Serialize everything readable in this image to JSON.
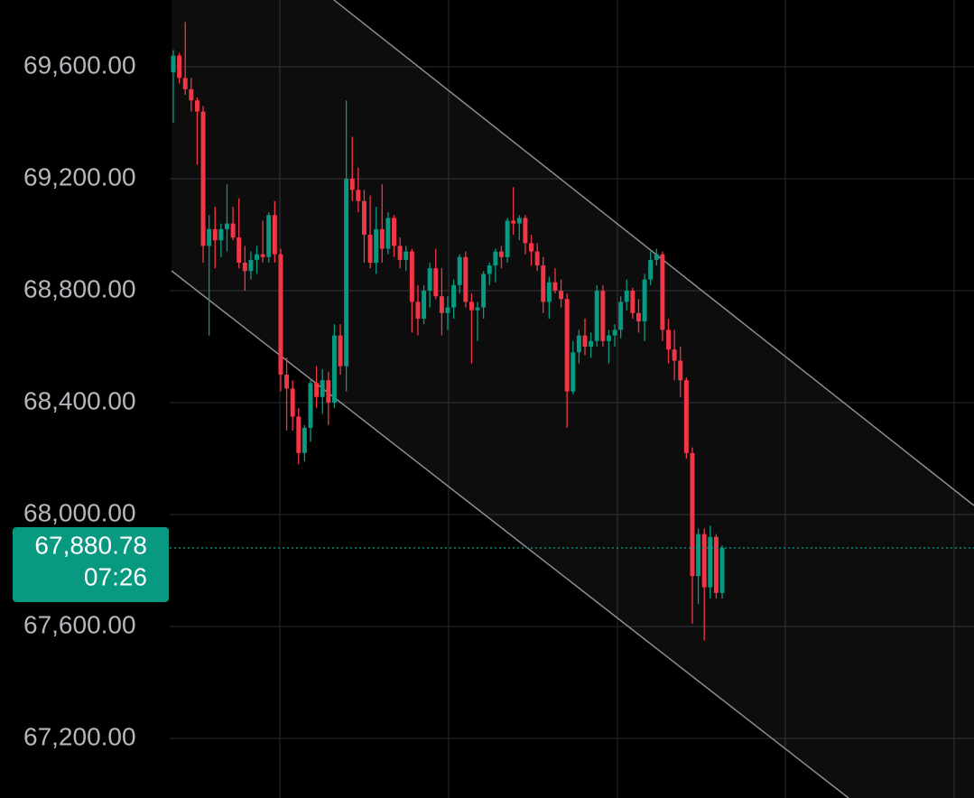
{
  "chart_data": {
    "type": "candlestick",
    "ylim": [
      66987.1,
      69838.7
    ],
    "yticks": [
      {
        "value": 69600,
        "label": "69,600.00"
      },
      {
        "value": 69200,
        "label": "69,200.00"
      },
      {
        "value": 68800,
        "label": "68,800.00"
      },
      {
        "value": 68400,
        "label": "68,400.00"
      },
      {
        "value": 68000,
        "label": "68,000.00"
      },
      {
        "value": 67600,
        "label": "67,600.00"
      },
      {
        "value": 67200,
        "label": "67,200.00"
      }
    ],
    "grid": true,
    "up_color": "#089981",
    "down_color": "#f23645",
    "current_price": {
      "value": 67880.78,
      "label": "67,880.78"
    },
    "countdown": "07:26",
    "ohlc": [
      [
        69580,
        69660,
        69400,
        69640
      ],
      [
        69640,
        69650,
        69540,
        69560
      ],
      [
        69560,
        69760,
        69500,
        69520
      ],
      [
        69520,
        69560,
        69440,
        69480
      ],
      [
        69480,
        69490,
        69250,
        69440
      ],
      [
        69440,
        69460,
        68900,
        68960
      ],
      [
        68960,
        69070,
        68640,
        69020
      ],
      [
        69020,
        69100,
        68880,
        68980
      ],
      [
        68980,
        69040,
        68920,
        69020
      ],
      [
        69020,
        69180,
        68940,
        69040
      ],
      [
        69040,
        69100,
        68980,
        68990
      ],
      [
        68990,
        69130,
        68880,
        68900
      ],
      [
        68900,
        68960,
        68800,
        68870
      ],
      [
        68870,
        68940,
        68840,
        68910
      ],
      [
        68910,
        68960,
        68860,
        68930
      ],
      [
        68930,
        69050,
        68900,
        68920
      ],
      [
        68920,
        69080,
        68900,
        69070
      ],
      [
        69070,
        69120,
        68900,
        68930
      ],
      [
        68930,
        68950,
        68440,
        68500
      ],
      [
        68500,
        68560,
        68300,
        68450
      ],
      [
        68450,
        68480,
        68300,
        68350
      ],
      [
        68350,
        68380,
        68180,
        68220
      ],
      [
        68220,
        68320,
        68190,
        68310
      ],
      [
        68310,
        68480,
        68260,
        68470
      ],
      [
        68470,
        68530,
        68380,
        68420
      ],
      [
        68420,
        68520,
        68360,
        68480
      ],
      [
        68480,
        68510,
        68320,
        68400
      ],
      [
        68400,
        68680,
        68380,
        68640
      ],
      [
        68640,
        68680,
        68500,
        68530
      ],
      [
        68530,
        69480,
        68440,
        69200
      ],
      [
        69200,
        69350,
        69120,
        69160
      ],
      [
        69160,
        69240,
        69080,
        69120
      ],
      [
        69120,
        69160,
        68900,
        69000
      ],
      [
        69000,
        69140,
        68880,
        68900
      ],
      [
        68900,
        69100,
        68860,
        69020
      ],
      [
        69020,
        69180,
        68900,
        68950
      ],
      [
        68950,
        69080,
        68930,
        69060
      ],
      [
        69060,
        69070,
        68920,
        68960
      ],
      [
        68960,
        68990,
        68880,
        68910
      ],
      [
        68910,
        68960,
        68870,
        68940
      ],
      [
        68940,
        68950,
        68650,
        68760
      ],
      [
        68760,
        68820,
        68640,
        68700
      ],
      [
        68700,
        68820,
        68680,
        68800
      ],
      [
        68800,
        68900,
        68740,
        68880
      ],
      [
        68880,
        68950,
        68770,
        68780
      ],
      [
        68780,
        68880,
        68640,
        68720
      ],
      [
        68720,
        68780,
        68660,
        68740
      ],
      [
        68740,
        68840,
        68700,
        68820
      ],
      [
        68820,
        68930,
        68790,
        68920
      ],
      [
        68920,
        68940,
        68740,
        68760
      ],
      [
        68760,
        68790,
        68540,
        68730
      ],
      [
        68730,
        68760,
        68620,
        68740
      ],
      [
        68740,
        68870,
        68700,
        68860
      ],
      [
        68860,
        68900,
        68820,
        68890
      ],
      [
        68890,
        68950,
        68830,
        68940
      ],
      [
        68940,
        68960,
        68880,
        68920
      ],
      [
        68920,
        69060,
        68900,
        69050
      ],
      [
        69050,
        69170,
        69000,
        69040
      ],
      [
        69040,
        69070,
        68980,
        69060
      ],
      [
        69060,
        69070,
        68930,
        68970
      ],
      [
        68970,
        69000,
        68890,
        68940
      ],
      [
        68940,
        68970,
        68870,
        68890
      ],
      [
        68890,
        68920,
        68720,
        68760
      ],
      [
        68760,
        68850,
        68700,
        68830
      ],
      [
        68830,
        68880,
        68790,
        68800
      ],
      [
        68800,
        68840,
        68740,
        68770
      ],
      [
        68770,
        68790,
        68310,
        68440
      ],
      [
        68440,
        68620,
        68430,
        68580
      ],
      [
        68580,
        68660,
        68540,
        68640
      ],
      [
        68640,
        68700,
        68570,
        68600
      ],
      [
        68600,
        68650,
        68560,
        68620
      ],
      [
        68620,
        68820,
        68600,
        68800
      ],
      [
        68800,
        68820,
        68600,
        68620
      ],
      [
        68620,
        68660,
        68540,
        68640
      ],
      [
        68640,
        68680,
        68600,
        68660
      ],
      [
        68660,
        68780,
        68630,
        68760
      ],
      [
        68760,
        68840,
        68730,
        68800
      ],
      [
        68800,
        68810,
        68700,
        68720
      ],
      [
        68720,
        68770,
        68650,
        68690
      ],
      [
        68690,
        68860,
        68620,
        68840
      ],
      [
        68840,
        68940,
        68820,
        68910
      ],
      [
        68910,
        68950,
        68890,
        68930
      ],
      [
        68930,
        68940,
        68620,
        68660
      ],
      [
        68660,
        68700,
        68540,
        68590
      ],
      [
        68590,
        68660,
        68480,
        68550
      ],
      [
        68550,
        68600,
        68420,
        68480
      ],
      [
        68480,
        68490,
        68200,
        68220
      ],
      [
        68220,
        68240,
        67610,
        67780
      ],
      [
        67780,
        67950,
        67680,
        67930
      ],
      [
        67930,
        67950,
        67550,
        67740
      ],
      [
        67740,
        67960,
        67700,
        67920
      ],
      [
        67920,
        67930,
        67700,
        67720
      ],
      [
        67720,
        67890,
        67700,
        67880.78
      ]
    ]
  }
}
